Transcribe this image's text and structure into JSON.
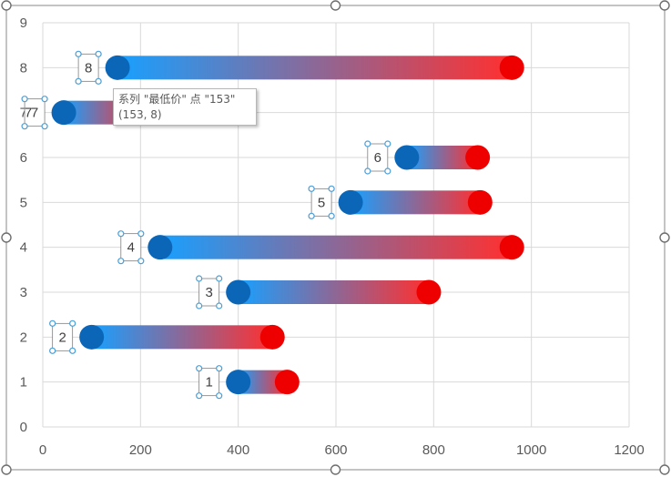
{
  "colors": {
    "background": "#ffffff",
    "grid": "#d9d9d9",
    "axis_text": "#595959",
    "bar_start": "#18a0ff",
    "bar_end": "#ff3030",
    "start_marker": "#0b66b8",
    "end_marker": "#ee0000",
    "selection_handle": "#4a9fd8"
  },
  "chart_data": {
    "type": "bar",
    "orientation": "horizontal-range",
    "xlim": [
      0,
      1200
    ],
    "ylim": [
      0,
      9
    ],
    "x_ticks": [
      "0",
      "200",
      "400",
      "600",
      "800",
      "1000",
      "1200"
    ],
    "y_ticks": [
      "0",
      "1",
      "2",
      "3",
      "4",
      "5",
      "6",
      "7",
      "8",
      "9"
    ],
    "grid": true,
    "ranges": [
      {
        "label": "1",
        "y": 1,
        "start": 400,
        "end": 500
      },
      {
        "label": "2",
        "y": 2,
        "start": 100,
        "end": 470
      },
      {
        "label": "3",
        "y": 3,
        "start": 400,
        "end": 790
      },
      {
        "label": "4",
        "y": 4,
        "start": 240,
        "end": 960
      },
      {
        "label": "5",
        "y": 5,
        "start": 630,
        "end": 895
      },
      {
        "label": "6",
        "y": 6,
        "start": 745,
        "end": 890
      },
      {
        "label": "7",
        "y": 7,
        "start": 43,
        "end": 200
      },
      {
        "label": "8",
        "y": 8,
        "start": 153,
        "end": 960
      }
    ]
  },
  "tooltip": {
    "line1": "系列 \"最低价\" 点 \"153\"",
    "line2": "(153, 8)"
  },
  "extra_labels": [
    {
      "text": "7",
      "near": "7"
    }
  ]
}
